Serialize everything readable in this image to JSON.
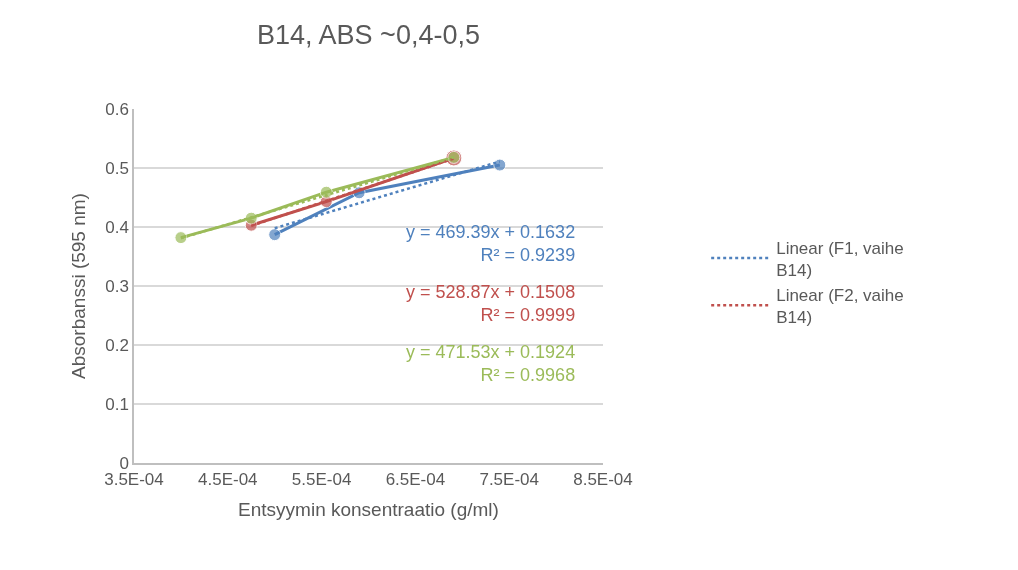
{
  "chart_data": {
    "type": "line",
    "title": "B14, ABS ~0,4-0,5",
    "xlabel": "Entsyymin konsentraatio (g/ml)",
    "ylabel": "Absorbanssi (595 nm)",
    "xlim": [
      0.00035,
      0.00085
    ],
    "xticks": [
      {
        "value": 0.00035,
        "label": "3.5E-04"
      },
      {
        "value": 0.00045,
        "label": "4.5E-04"
      },
      {
        "value": 0.00055,
        "label": "5.5E-04"
      },
      {
        "value": 0.00065,
        "label": "6.5E-04"
      },
      {
        "value": 0.00075,
        "label": "7.5E-04"
      },
      {
        "value": 0.00085,
        "label": "8.5E-04"
      }
    ],
    "ylim": [
      0,
      0.6
    ],
    "yticks": [
      0,
      0.1,
      0.2,
      0.3,
      0.4,
      0.5,
      0.6
    ],
    "grid": "y",
    "legend": "right",
    "series": [
      {
        "color": "#4f81bd",
        "x": [
          0.0005,
          0.00059,
          0.00074
        ],
        "values": [
          0.387,
          0.458,
          0.505
        ],
        "marker": "circle",
        "line_style": "solid"
      },
      {
        "color": "#c0504d",
        "x": [
          0.000475,
          0.000555,
          0.000691
        ],
        "values": [
          0.403,
          0.443,
          0.517
        ],
        "marker": "circle",
        "line_style": "solid"
      },
      {
        "color": "#9bbb59",
        "x": [
          0.0004,
          0.000475,
          0.000555,
          0.000691
        ],
        "values": [
          0.382,
          0.415,
          0.459,
          0.518
        ],
        "marker": "circle",
        "line_style": "solid"
      },
      {
        "name": "Linear (F1, vaihe B14)",
        "color": "#4f81bd",
        "x": [
          0.0005,
          0.00074
        ],
        "values": [
          0.398,
          0.511
        ],
        "marker": "none",
        "line_style": "dotted"
      },
      {
        "name": "Linear (F2, vaihe B14)",
        "color": "#c0504d",
        "x": [
          0.000475,
          0.000691
        ],
        "values": [
          0.402,
          0.516
        ],
        "marker": "none",
        "line_style": "dotted"
      },
      {
        "color": "#9bbb59",
        "x": [
          0.0004,
          0.000691
        ],
        "values": [
          0.381,
          0.518
        ],
        "marker": "none",
        "line_style": "dotted"
      }
    ],
    "annotations": [
      "y = 469.39x + 0.1632\nR² = 0.9239",
      "y = 528.87x + 0.1508\nR² = 0.9999",
      "y = 471.53x + 0.1924\nR² = 0.9968"
    ]
  }
}
